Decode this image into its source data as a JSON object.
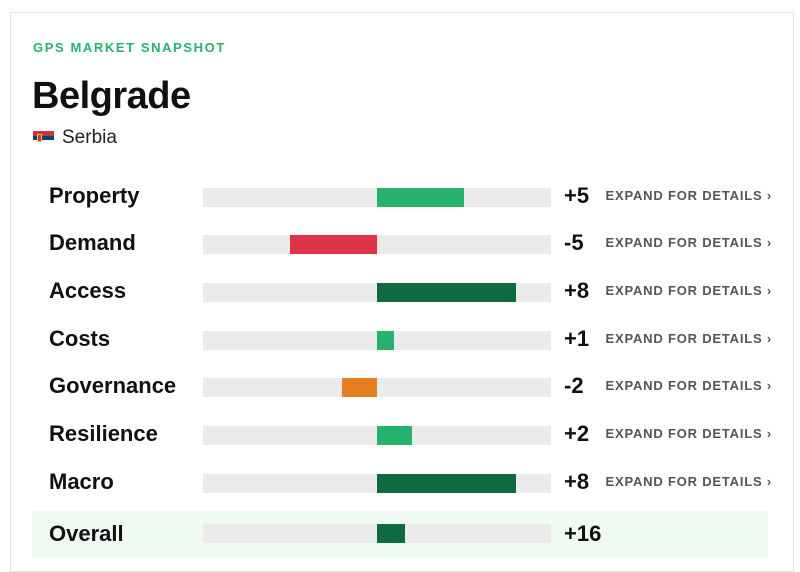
{
  "eyebrow": "GPS MARKET SNAPSHOT",
  "city": "Belgrade",
  "country": {
    "name": "Serbia",
    "flag_icon": "serbia-flag-icon"
  },
  "colors": {
    "accent": "#27b36e",
    "positive_light": "#27b36e",
    "positive_dark": "#0f6b3f",
    "negative_strong": "#de3446",
    "negative_mild": "#e47f22",
    "track": "#ebebeb",
    "overall_bg": "#eefaf2"
  },
  "expand_label": "EXPAND FOR DETAILS ›",
  "rows": [
    {
      "label": "Property",
      "score": "+5",
      "value": 5,
      "color": "#27b36e"
    },
    {
      "label": "Demand",
      "score": "-5",
      "value": -5,
      "color": "#de3446"
    },
    {
      "label": "Access",
      "score": "+8",
      "value": 8,
      "color": "#0f6b3f"
    },
    {
      "label": "Costs",
      "score": "+1",
      "value": 1,
      "color": "#27b36e"
    },
    {
      "label": "Governance",
      "score": "-2",
      "value": -2,
      "color": "#e47f22"
    },
    {
      "label": "Resilience",
      "score": "+2",
      "value": 2,
      "color": "#27b36e"
    },
    {
      "label": "Macro",
      "score": "+8",
      "value": 8,
      "color": "#0f6b3f"
    }
  ],
  "overall": {
    "label": "Overall",
    "score": "+16",
    "value": 16,
    "color": "#0f6b3f"
  }
}
